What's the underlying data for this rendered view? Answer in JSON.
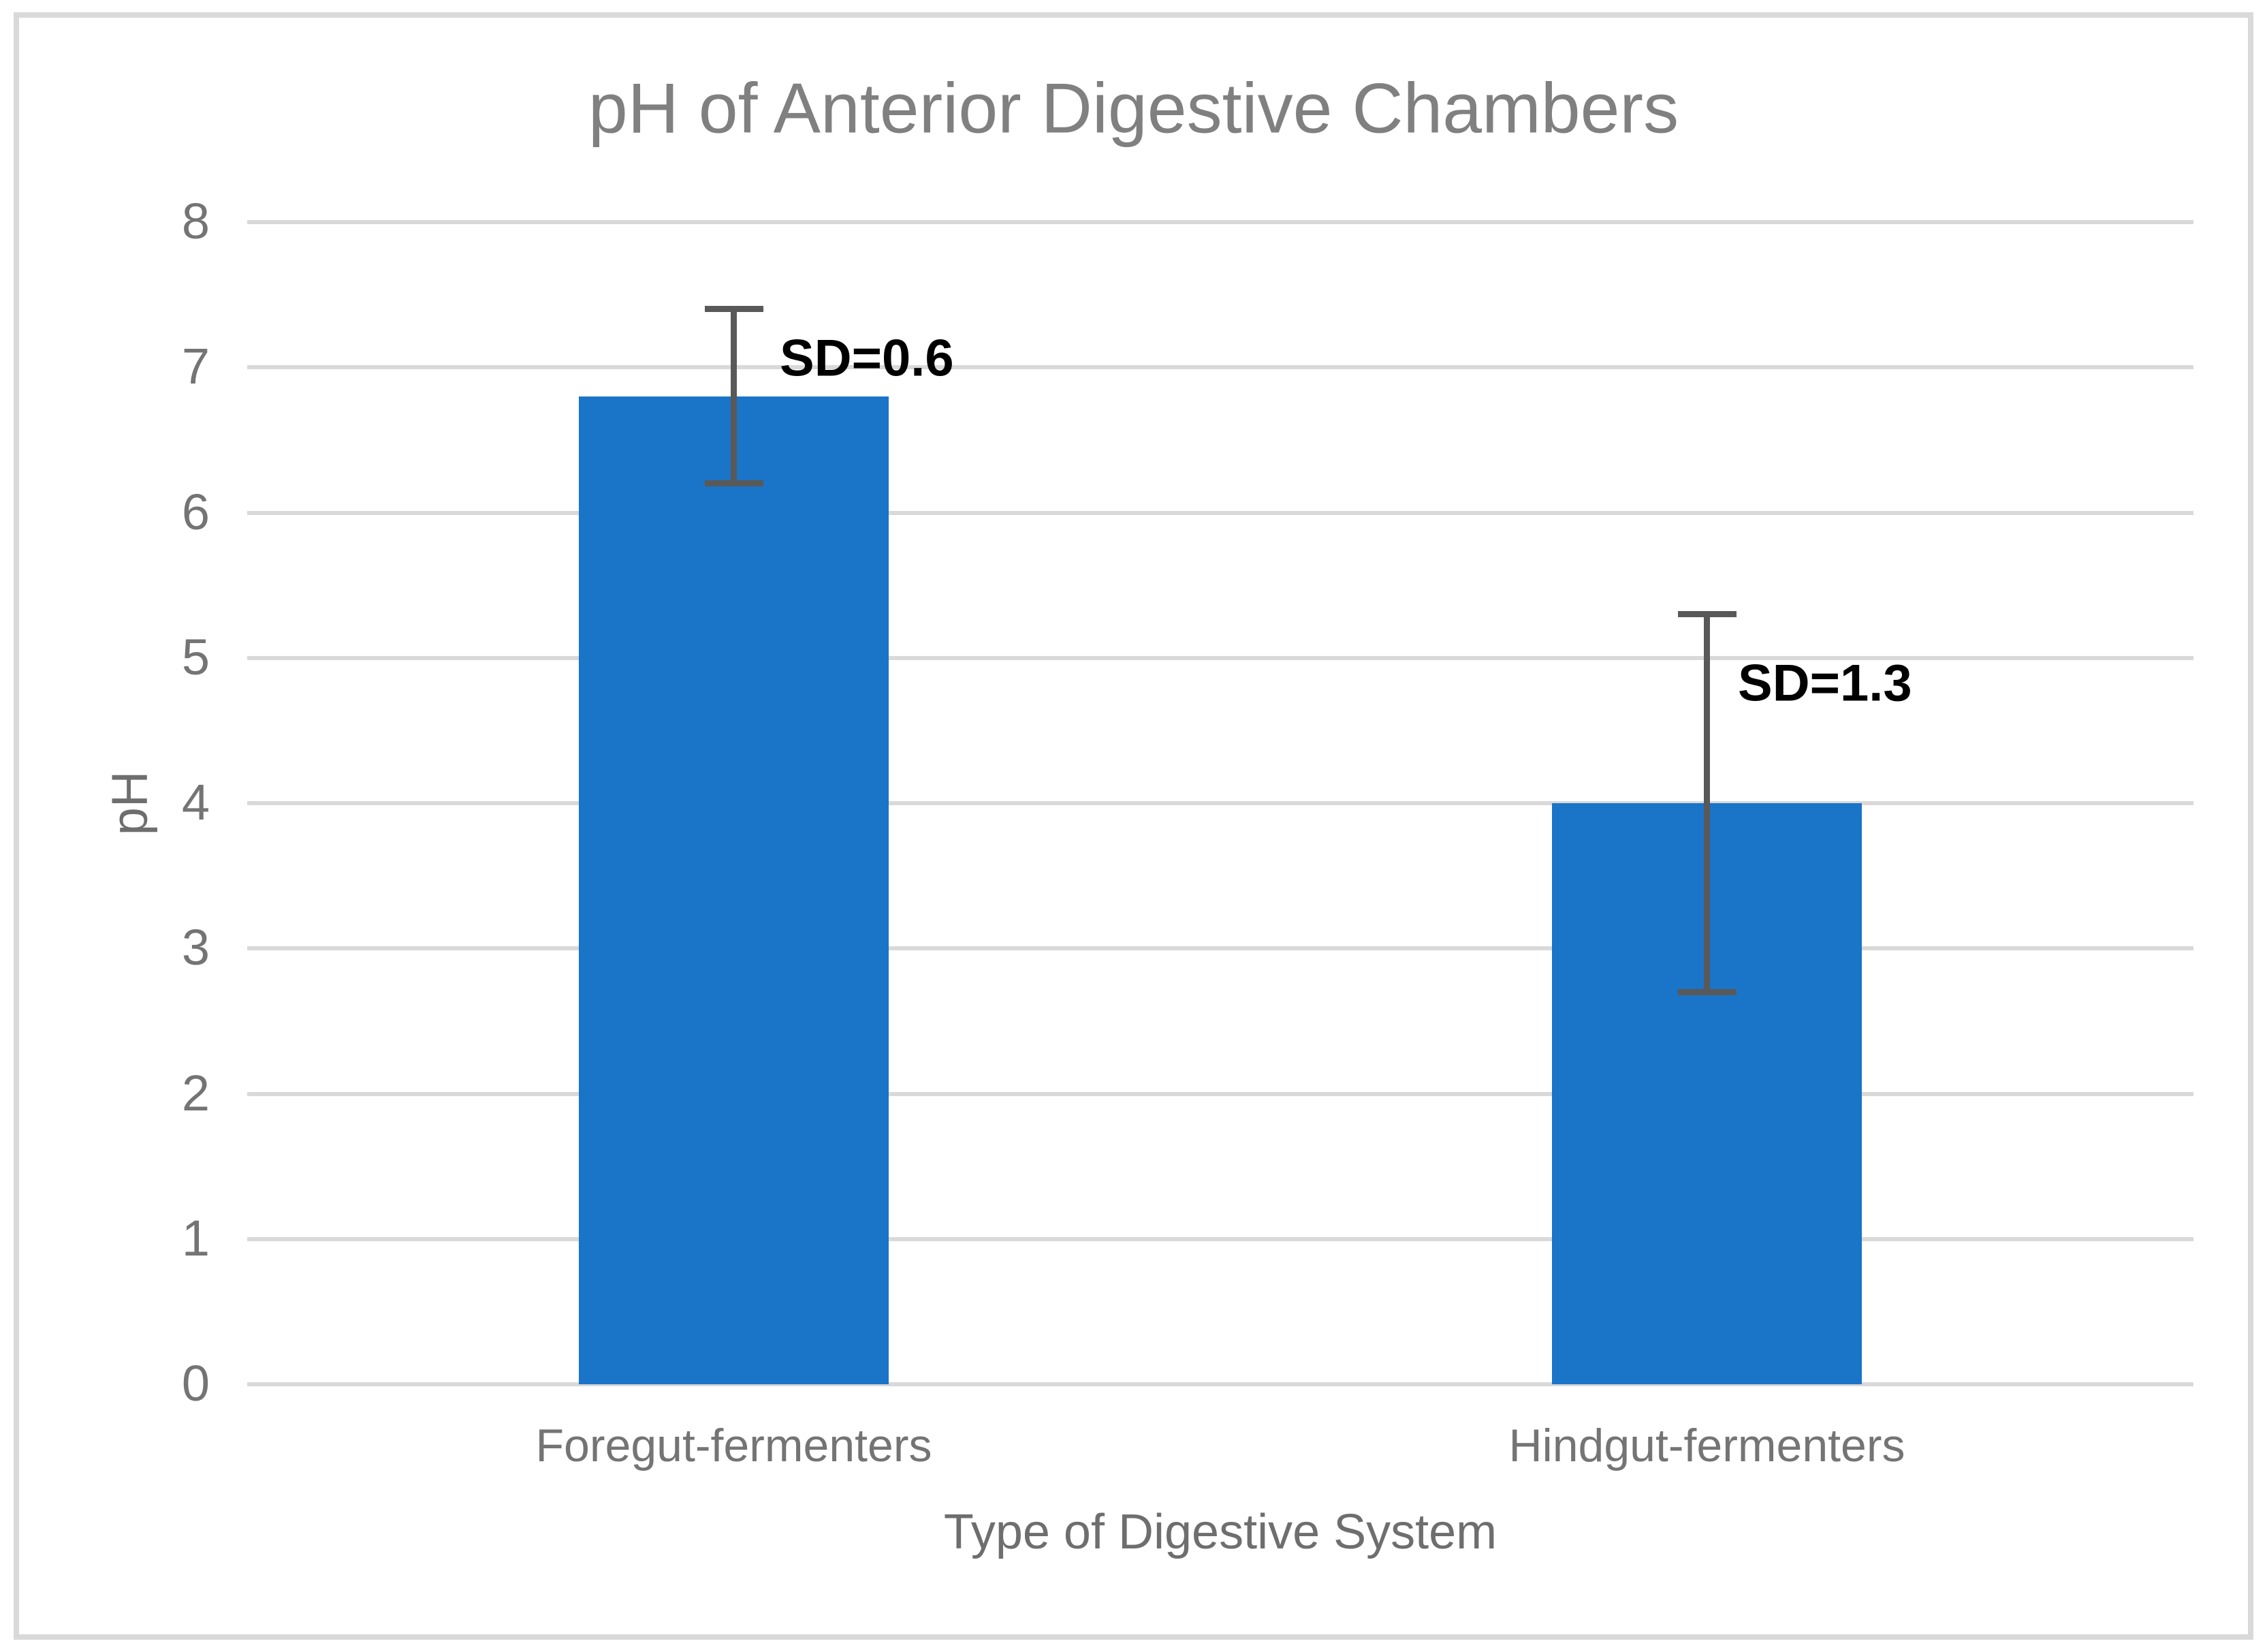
{
  "chart_data": {
    "type": "bar",
    "title": "pH of Anterior Digestive Chambers",
    "xlabel": "Type of Digestive System",
    "ylabel": "pH",
    "categories": [
      "Foregut-fermenters",
      "Hindgut-fermenters"
    ],
    "values": [
      6.8,
      4.0
    ],
    "errors": [
      0.6,
      1.3
    ],
    "error_labels": [
      "SD=0.6",
      "SD=1.3"
    ],
    "ylim": [
      0,
      8
    ],
    "yticks": [
      0,
      1,
      2,
      3,
      4,
      5,
      6,
      7,
      8
    ],
    "grid": "horizontal-major",
    "legend": "none",
    "colors": {
      "bar": "#1a74c8",
      "error_bar": "#595959",
      "gridline": "#d9d9d9",
      "chart_border": "#d9d9d9",
      "title_text": "#808080",
      "axis_title_text": "#6e6e6e",
      "tick_label_text": "#747474",
      "sd_label_text": "#000000",
      "background": "#ffffff"
    }
  }
}
